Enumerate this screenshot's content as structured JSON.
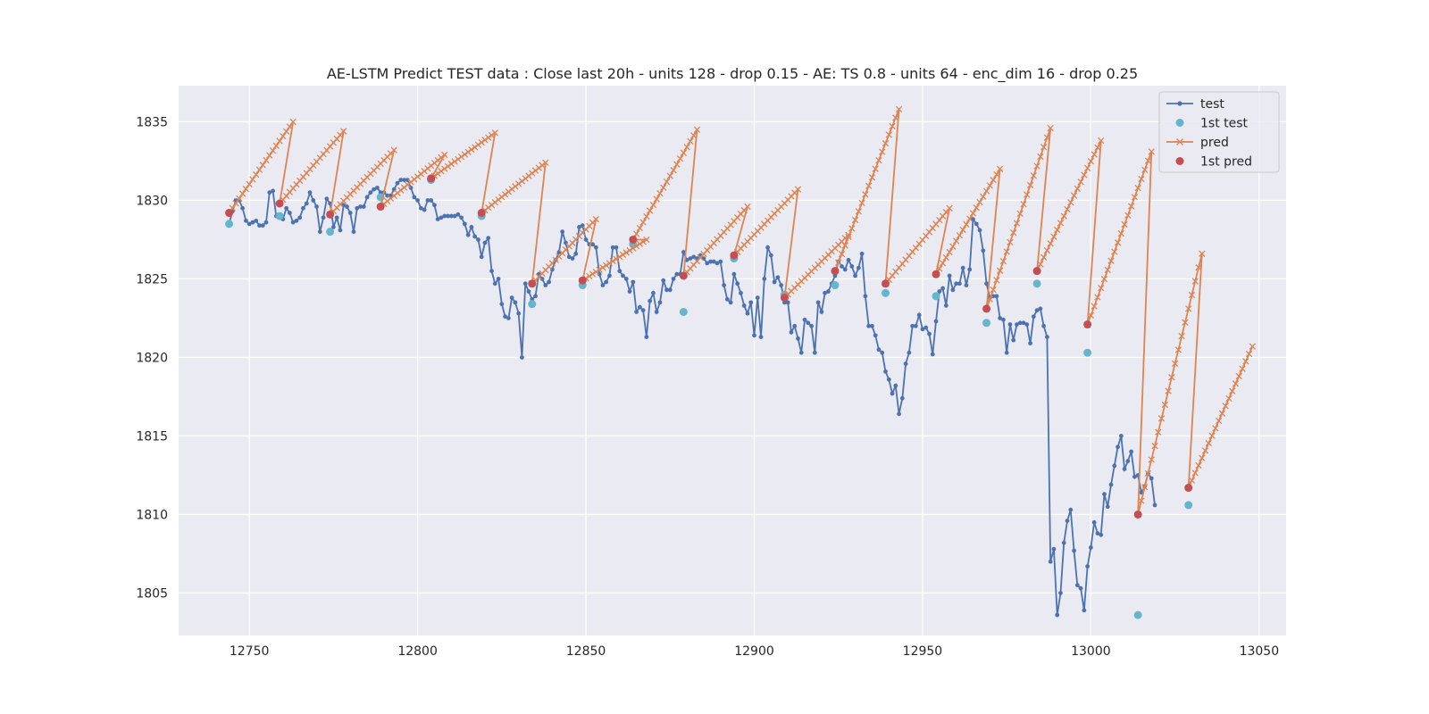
{
  "chart_data": {
    "type": "line",
    "title": "AE-LSTM Predict TEST data : Close last 20h - units 128 - drop 0.15 - AE: TS 0.8 - units 64 - enc_dim 16 - drop 0.25",
    "xlabel": "",
    "ylabel": "",
    "xlim": [
      12729,
      13058
    ],
    "ylim": [
      1802.3,
      1837.3
    ],
    "xticks": [
      12750,
      12800,
      12850,
      12900,
      12950,
      13000,
      13050
    ],
    "yticks": [
      1805,
      1810,
      1815,
      1820,
      1825,
      1830,
      1835
    ],
    "grid": true,
    "legend_position": "top-right",
    "legend": [
      "test",
      "1st test",
      "pred",
      "1st pred"
    ],
    "colors": {
      "test": "#4c72b0",
      "first_test": "#64b5cd",
      "pred": "#dd8452",
      "first_pred": "#c44e52",
      "background": "#eaeaf2",
      "grid": "#ffffff"
    },
    "test": {
      "name": "test",
      "x_start": 12744,
      "values": [
        1828.5,
        1829.3,
        1830,
        1830,
        1829.5,
        1828.7,
        1828.5,
        1828.6,
        1828.7,
        1828.4,
        1828.4,
        1828.6,
        1830.5,
        1830.6,
        1829.0,
        1829.0,
        1828.8,
        1829.5,
        1829.2,
        1828.6,
        1828.7,
        1828.9,
        1829.5,
        1829.8,
        1830.5,
        1830.0,
        1829.6,
        1828.0,
        1828.9,
        1830.1,
        1829.8,
        1828.3,
        1828.9,
        1828.1,
        1829.7,
        1829.6,
        1829.2,
        1828.0,
        1829.5,
        1829.6,
        1829.6,
        1830.2,
        1830.5,
        1830.7,
        1830.8,
        1830.5,
        1830.5,
        1830.3,
        1830.3,
        1830.7,
        1831.1,
        1831.3,
        1831.3,
        1831.3,
        1830.8,
        1830.2,
        1830.0,
        1829.5,
        1829.4,
        1830.0,
        1830.0,
        1829.7,
        1828.8,
        1828.9,
        1829.0,
        1829.0,
        1829.0,
        1829.0,
        1829.1,
        1828.9,
        1828.5,
        1827.8,
        1828.3,
        1827.7,
        1827.5,
        1826.4,
        1827.3,
        1827.6,
        1825.5,
        1824.7,
        1825.0,
        1823.4,
        1822.6,
        1822.5,
        1823.8,
        1823.5,
        1822.8,
        1820.0,
        1824.7,
        1824.2,
        1823.7,
        1823.9,
        1825.3,
        1825.0,
        1824.6,
        1824.8,
        1825.6,
        1826.2,
        1826.7,
        1828.0,
        1827.3,
        1826.4,
        1826.3,
        1826.6,
        1828.3,
        1828.4,
        1827.5,
        1827.2,
        1827.2,
        1827.0,
        1825.3,
        1824.6,
        1824.8,
        1825.2,
        1827.0,
        1827.0,
        1825.5,
        1825.2,
        1825.0,
        1824.2,
        1824.8,
        1822.9,
        1823.2,
        1823.0,
        1821.3,
        1823.6,
        1824.1,
        1822.9,
        1823.5,
        1824.9,
        1824.3,
        1824.3,
        1825.0,
        1825.3,
        1825.3,
        1826.7,
        1826.2,
        1826.3,
        1826.4,
        1826.3,
        1826.5,
        1826.3,
        1826.0,
        1826.1,
        1826.1,
        1826.0,
        1826.1,
        1824.6,
        1823.7,
        1823.5,
        1825.3,
        1824.7,
        1824.1,
        1823.3,
        1822.8,
        1823.5,
        1821.4,
        1823.8,
        1821.3,
        1825.0,
        1827.0,
        1826.5,
        1824.8,
        1825.1,
        1824.6,
        1823.5,
        1823.5,
        1821.6,
        1822.0,
        1821.2,
        1820.3,
        1822.4,
        1822.2,
        1822.0,
        1820.3,
        1823.5,
        1822.9,
        1824.1,
        1824.2,
        1824.7,
        1825.2,
        1826.1,
        1825.8,
        1825.6,
        1826.2,
        1825.8,
        1825.2,
        1825.7,
        1826.6,
        1823.9,
        1822.0,
        1822.0,
        1821.4,
        1820.5,
        1820.3,
        1819.1,
        1818.6,
        1817.7,
        1818.2,
        1816.4,
        1817.4,
        1819.6,
        1820.3,
        1822.0,
        1822.0,
        1822.7,
        1821.8,
        1821.9,
        1821.5,
        1820.2,
        1822.3,
        1824.2,
        1824.4,
        1823.3,
        1825.2,
        1824.3,
        1824.7,
        1824.7,
        1825.7,
        1824.6,
        1825.6,
        1828.8,
        1828.5,
        1828.1,
        1826.8,
        1824.7,
        1823.8,
        1823.9,
        1823.9,
        1822.5,
        1822.4,
        1820.3,
        1822.1,
        1821.1,
        1822.1,
        1822.2,
        1822.2,
        1822.1,
        1820.9,
        1822.6,
        1823.0,
        1823.1,
        1822.0,
        1821.3,
        1807.0,
        1807.8,
        1803.6,
        1805.0,
        1808.2,
        1809.6,
        1810.3,
        1807.7,
        1805.5,
        1805.3,
        1803.9,
        1806.7,
        1807.9,
        1809.5,
        1808.8,
        1808.7,
        1811.3,
        1810.5,
        1811.9,
        1813.1,
        1814.3,
        1815.0,
        1812.9,
        1813.4,
        1814.0,
        1812.4,
        1812.5,
        1811.4,
        1811.8,
        1812.6,
        1812.3,
        1810.6
      ]
    },
    "first_test": {
      "name": "1st test",
      "x": [
        12744,
        12759,
        12774,
        12789,
        12804,
        12819,
        12834,
        12849,
        12864,
        12879,
        12894,
        12909,
        12924,
        12939,
        12954,
        12969,
        12984,
        12999,
        13014,
        13029
      ],
      "y": [
        1828.5,
        1829.0,
        1828.0,
        1830.2,
        1831.3,
        1829.0,
        1823.4,
        1824.6,
        1827.2,
        1822.9,
        1826.3,
        1824.0,
        1824.6,
        1824.1,
        1823.9,
        1822.2,
        1824.7,
        1820.3,
        1803.6,
        1810.6
      ]
    },
    "pred": {
      "name": "pred",
      "segments": [
        {
          "x_start": 12744,
          "y_start": 1829.2,
          "y_end": 1835.0
        },
        {
          "x_start": 12759,
          "y_start": 1829.8,
          "y_end": 1834.4
        },
        {
          "x_start": 12774,
          "y_start": 1829.1,
          "y_end": 1833.2
        },
        {
          "x_start": 12789,
          "y_start": 1829.6,
          "y_end": 1832.9
        },
        {
          "x_start": 12804,
          "y_start": 1831.4,
          "y_end": 1834.3
        },
        {
          "x_start": 12819,
          "y_start": 1829.2,
          "y_end": 1832.4
        },
        {
          "x_start": 12834,
          "y_start": 1824.7,
          "y_end": 1828.8
        },
        {
          "x_start": 12849,
          "y_start": 1824.9,
          "y_end": 1827.5
        },
        {
          "x_start": 12864,
          "y_start": 1827.5,
          "y_end": 1834.5
        },
        {
          "x_start": 12879,
          "y_start": 1825.2,
          "y_end": 1829.6
        },
        {
          "x_start": 12894,
          "y_start": 1826.5,
          "y_end": 1830.7
        },
        {
          "x_start": 12909,
          "y_start": 1823.8,
          "y_end": 1827.8
        },
        {
          "x_start": 12924,
          "y_start": 1825.5,
          "y_end": 1835.8
        },
        {
          "x_start": 12939,
          "y_start": 1824.7,
          "y_end": 1829.5
        },
        {
          "x_start": 12954,
          "y_start": 1825.3,
          "y_end": 1832.0
        },
        {
          "x_start": 12969,
          "y_start": 1823.1,
          "y_end": 1834.6
        },
        {
          "x_start": 12984,
          "y_start": 1825.5,
          "y_end": 1833.8
        },
        {
          "x_start": 12999,
          "y_start": 1822.1,
          "y_end": 1833.1
        },
        {
          "x_start": 13014,
          "y_start": 1810.0,
          "y_end": 1826.6
        },
        {
          "x_start": 13029,
          "y_start": 1811.7,
          "y_end": 1820.7
        }
      ]
    },
    "first_pred": {
      "name": "1st pred",
      "x": [
        12744,
        12759,
        12774,
        12789,
        12804,
        12819,
        12834,
        12849,
        12864,
        12879,
        12894,
        12909,
        12924,
        12939,
        12954,
        12969,
        12984,
        12999,
        13014,
        13029
      ],
      "y": [
        1829.2,
        1829.8,
        1829.1,
        1829.6,
        1831.4,
        1829.2,
        1824.7,
        1824.9,
        1827.5,
        1825.2,
        1826.5,
        1823.8,
        1825.5,
        1824.7,
        1825.3,
        1823.1,
        1825.5,
        1822.1,
        1810.0,
        1811.7
      ]
    }
  }
}
